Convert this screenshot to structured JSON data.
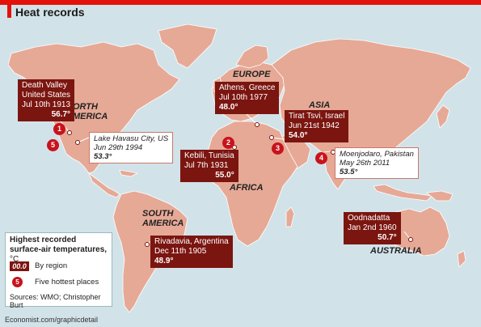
{
  "title": "Heat records",
  "footer": "Economist.com/graphicdetail",
  "regions": {
    "north_america": [
      "NORTH",
      "AMERICA"
    ],
    "south_america": [
      "SOUTH",
      "AMERICA"
    ],
    "europe": "EUROPE",
    "asia": "ASIA",
    "africa": "AFRICA",
    "australia": "AUSTRALIA"
  },
  "regional_records": [
    {
      "lines": [
        "Death Valley",
        "United States",
        "Jul 10th 1913"
      ],
      "value": "56.7°"
    },
    {
      "lines": [
        "Athens, Greece",
        "Jul 10th 1977"
      ],
      "value": "48.0°"
    },
    {
      "lines": [
        "Tirat Tsvi, Israel",
        "Jun 21st 1942"
      ],
      "value": "54.0°"
    },
    {
      "lines": [
        "Kebili, Tunisia",
        "Jul 7th 1931"
      ],
      "value": "55.0°"
    },
    {
      "lines": [
        "Rivadavia, Argentina",
        "Dec 11th 1905"
      ],
      "value": "48.9°"
    },
    {
      "lines": [
        "Oodnadatta",
        "Jan 2nd 1960"
      ],
      "value": "50.7°"
    }
  ],
  "other_records": [
    {
      "lines": [
        "Lake Havasu City, US",
        "Jun 29th 1994"
      ],
      "value": "53.3°"
    },
    {
      "lines": [
        "Moenjodaro, Pakistan",
        "May 26th 2011"
      ],
      "value": "53.5°"
    }
  ],
  "hottest_places": [
    "1",
    "5",
    "2",
    "3",
    "4"
  ],
  "legend": {
    "title_lines": [
      "Highest recorded",
      "surface-air temperatures,"
    ],
    "unit": "°C",
    "swatch": "00.0",
    "by_region": "By region",
    "circle": "5",
    "hottest": "Five hottest places",
    "sources": "Sources: WMO; Christopher Burt"
  },
  "colors": {
    "ocean": "#d2e2e9",
    "land": "#e6a996",
    "border": "#ffffff",
    "regional_box": "#7b1510",
    "rank_circle": "#c8131c",
    "accent": "#e3120b"
  }
}
